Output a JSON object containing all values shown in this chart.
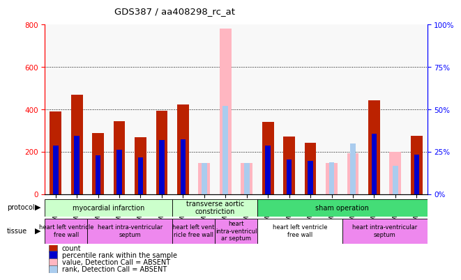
{
  "title": "GDS387 / aa408298_rc_at",
  "samples": [
    "GSM6118",
    "GSM6119",
    "GSM6120",
    "GSM6121",
    "GSM6122",
    "GSM6123",
    "GSM6132",
    "GSM6133",
    "GSM6134",
    "GSM6135",
    "GSM6124",
    "GSM6125",
    "GSM6126",
    "GSM6127",
    "GSM6128",
    "GSM6129",
    "GSM6130",
    "GSM6131"
  ],
  "count_values": [
    390,
    470,
    290,
    345,
    268,
    393,
    422,
    0,
    0,
    0,
    340,
    272,
    244,
    0,
    0,
    443,
    0,
    275
  ],
  "rank_values": [
    230,
    275,
    185,
    210,
    175,
    255,
    258,
    0,
    0,
    0,
    228,
    165,
    158,
    0,
    0,
    285,
    0,
    188
  ],
  "absent_count": [
    0,
    0,
    0,
    0,
    0,
    0,
    0,
    148,
    780,
    148,
    0,
    0,
    0,
    148,
    195,
    0,
    200,
    0
  ],
  "absent_rank": [
    0,
    0,
    0,
    0,
    0,
    0,
    0,
    148,
    418,
    148,
    0,
    0,
    0,
    152,
    238,
    0,
    135,
    0
  ],
  "ylim_left": [
    0,
    800
  ],
  "ylim_right": [
    0,
    100
  ],
  "yticks_left": [
    0,
    200,
    400,
    600,
    800
  ],
  "yticks_right": [
    0,
    25,
    50,
    75,
    100
  ],
  "count_color": "#bb2200",
  "rank_color": "#0000cc",
  "absent_count_color": "#ffb6c1",
  "absent_rank_color": "#aaccee",
  "bar_width": 0.55,
  "rank_bar_width": 0.25,
  "plot_bg": "#f8f8f8",
  "protocol_spans": [
    {
      "start": 0,
      "end": 6,
      "label": "myocardial infarction",
      "color": "#ccffcc"
    },
    {
      "start": 6,
      "end": 10,
      "label": "transverse aortic\nconstriction",
      "color": "#ccffcc"
    },
    {
      "start": 10,
      "end": 18,
      "label": "sham operation",
      "color": "#44dd77"
    }
  ],
  "tissue_spans": [
    {
      "start": 0,
      "end": 2,
      "label": "heart left ventricle\nfree wall",
      "color": "#ee88ee"
    },
    {
      "start": 2,
      "end": 6,
      "label": "heart intra-ventricular\nseptum",
      "color": "#ee88ee"
    },
    {
      "start": 6,
      "end": 8,
      "label": "heart left vent\nricle free wall",
      "color": "#ee88ee"
    },
    {
      "start": 8,
      "end": 10,
      "label": "heart\nintra-ventricul\nar septum",
      "color": "#ee88ee"
    },
    {
      "start": 10,
      "end": 14,
      "label": "heart left ventricle\nfree wall",
      "color": "#ffffff"
    },
    {
      "start": 14,
      "end": 18,
      "label": "heart intra-ventricular\nseptum",
      "color": "#ee88ee"
    }
  ],
  "legend_items": [
    {
      "color": "#bb2200",
      "label": "count"
    },
    {
      "color": "#0000cc",
      "label": "percentile rank within the sample"
    },
    {
      "color": "#ffb6c1",
      "label": "value, Detection Call = ABSENT"
    },
    {
      "color": "#aaccee",
      "label": "rank, Detection Call = ABSENT"
    }
  ]
}
